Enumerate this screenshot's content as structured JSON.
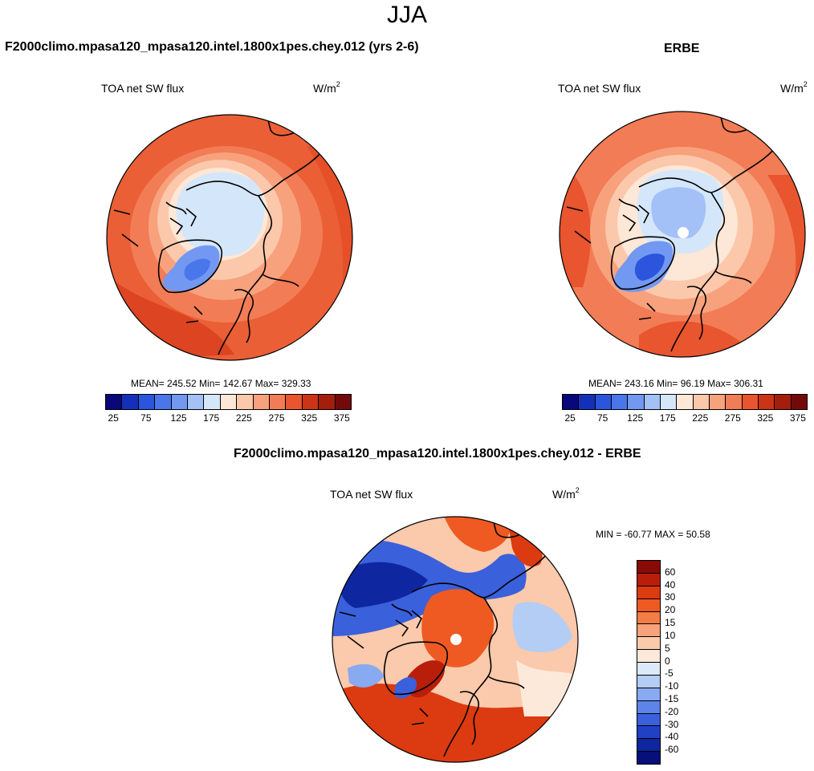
{
  "title": "JJA",
  "panels": {
    "model": {
      "title": "F2000climo.mpasa120_mpasa120.intel.1800x1pes.chey.012 (yrs 2-6)",
      "left_label": "TOA net SW flux",
      "units_base": "W/m",
      "units_sup": "2",
      "stats": "MEAN= 245.52  Min= 142.67  Max= 329.33"
    },
    "obs": {
      "title": "ERBE",
      "left_label": "TOA net SW flux",
      "units_base": "W/m",
      "units_sup": "2",
      "stats": "MEAN= 243.16  Min=  96.19  Max= 306.31"
    },
    "diff": {
      "title": "F2000climo.mpasa120_mpasa120.intel.1800x1pes.chey.012 - ERBE",
      "left_label": "TOA net SW flux",
      "units_base": "W/m",
      "units_sup": "2",
      "stats": "MIN = -60.77 MAX =  50.58"
    }
  },
  "colorbar_abs": {
    "colors": [
      "#08087a",
      "#1530b8",
      "#2a55dc",
      "#4a76ec",
      "#7298f2",
      "#a3c0f7",
      "#d4e6fa",
      "#fde7d6",
      "#fbc8ab",
      "#f7a27d",
      "#f27c55",
      "#e8552f",
      "#cd3315",
      "#a51d0c",
      "#73090a"
    ],
    "ticks": [
      "25",
      "75",
      "125",
      "175",
      "225",
      "275",
      "325",
      "375"
    ]
  },
  "colorbar_diff": {
    "colors": [
      "#8a0a08",
      "#b81e0a",
      "#dc3a10",
      "#ee5a22",
      "#f47c45",
      "#f7a27b",
      "#fbc9ab",
      "#fde9da",
      "#dce9f8",
      "#b3cdf5",
      "#88aaf0",
      "#5d84e8",
      "#3a60db",
      "#2240c4",
      "#0e26a0",
      "#070f78"
    ],
    "ticks": [
      "60",
      "40",
      "30",
      "20",
      "15",
      "10",
      "5",
      "0",
      "-5",
      "-10",
      "-15",
      "-20",
      "-30",
      "-40",
      "-60"
    ]
  }
}
